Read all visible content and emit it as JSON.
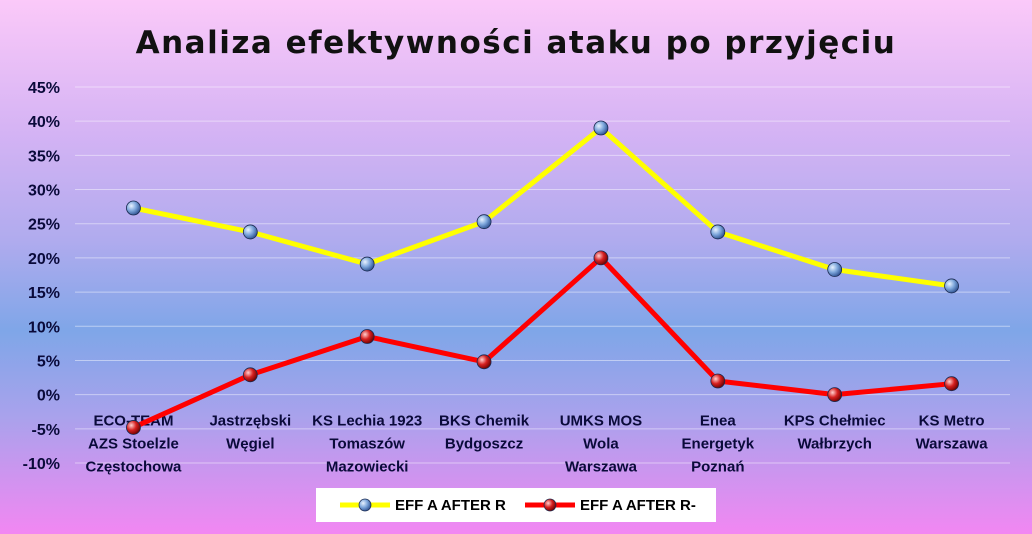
{
  "chart_data": {
    "type": "line",
    "title": "Analiza efektywności ataku po przyjęciu",
    "xlabel": "",
    "ylabel": "",
    "ylim": [
      -10,
      45
    ],
    "y_ticks": [
      "45%",
      "40%",
      "35%",
      "30%",
      "25%",
      "20%",
      "15%",
      "10%",
      "5%",
      "0%",
      "-5%",
      "-10%"
    ],
    "y_tick_values": [
      45,
      40,
      35,
      30,
      25,
      20,
      15,
      10,
      5,
      0,
      -5,
      -10
    ],
    "grid": true,
    "legend_position": "bottom",
    "categories": [
      [
        "ECO-TEAM",
        "AZS Stoelzle",
        "Częstochowa"
      ],
      [
        "Jastrzębski",
        "Węgiel"
      ],
      [
        "KS Lechia 1923",
        "Tomaszów",
        "Mazowiecki"
      ],
      [
        "BKS Chemik",
        "Bydgoszcz"
      ],
      [
        "UMKS MOS",
        "Wola",
        "Warszawa"
      ],
      [
        "Enea",
        "Energetyk",
        "Poznań"
      ],
      [
        "KPS Chełmiec",
        "Wałbrzych"
      ],
      [
        "KS Metro",
        "Warszawa"
      ]
    ],
    "series": [
      {
        "name": "EFF A AFTER  R",
        "color": "#ffff00",
        "values": [
          27.3,
          23.8,
          19.1,
          25.3,
          39.0,
          23.8,
          18.3,
          15.9
        ]
      },
      {
        "name": "EFF A AFTER  R-",
        "color": "#ff0000",
        "values": [
          -4.8,
          2.9,
          8.5,
          4.8,
          20.0,
          2.0,
          0.0,
          1.6
        ]
      }
    ]
  }
}
